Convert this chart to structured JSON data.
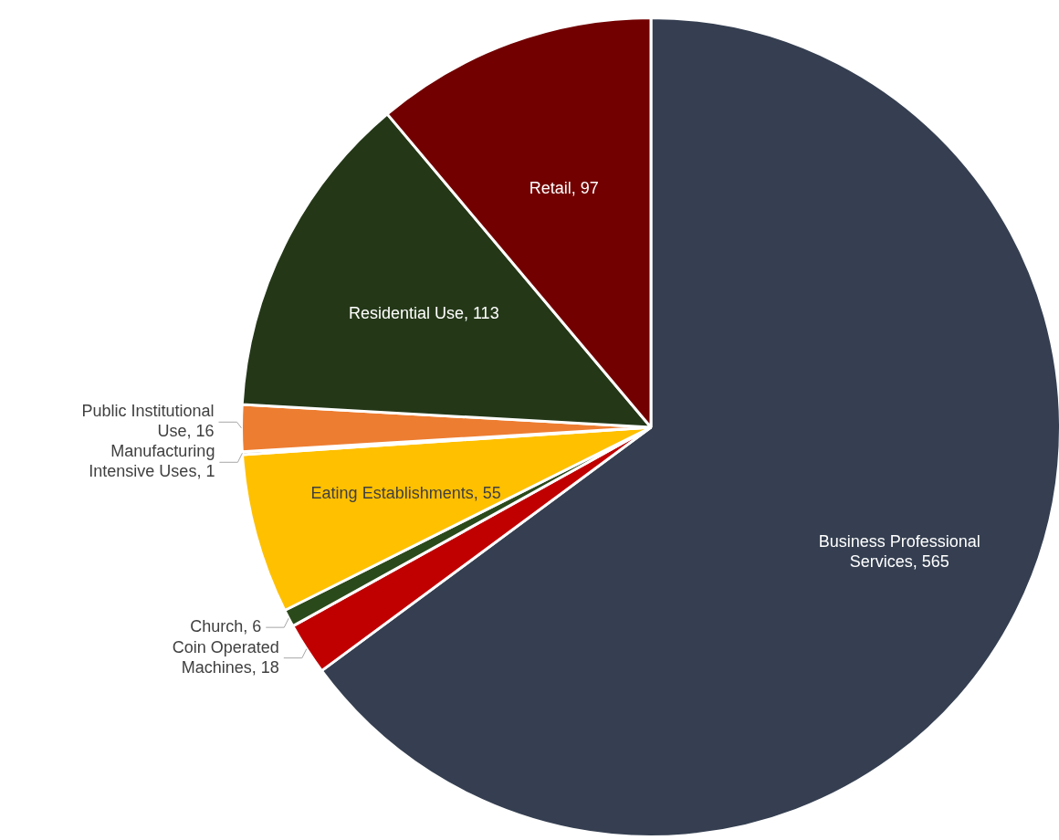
{
  "chart_data": {
    "type": "pie",
    "categories": [
      "Business Professional Services",
      "Coin Operated Machines",
      "Church",
      "Eating Establishments",
      "Manufacturing Intensive Uses",
      "Public Institutional Use",
      "Residential Use",
      "Retail"
    ],
    "values": [
      565,
      18,
      6,
      55,
      1,
      16,
      113,
      97
    ],
    "colors": [
      "#353f51",
      "#c00000",
      "#2b4a1b",
      "#ffc000",
      "#a5a5a5",
      "#ed7d31",
      "#243818",
      "#720000"
    ],
    "value_labels": [
      ", 565",
      ", 18",
      ", 6",
      ", 55",
      ", 1",
      ", 16",
      ", 113",
      ", 97"
    ],
    "legend": false
  }
}
